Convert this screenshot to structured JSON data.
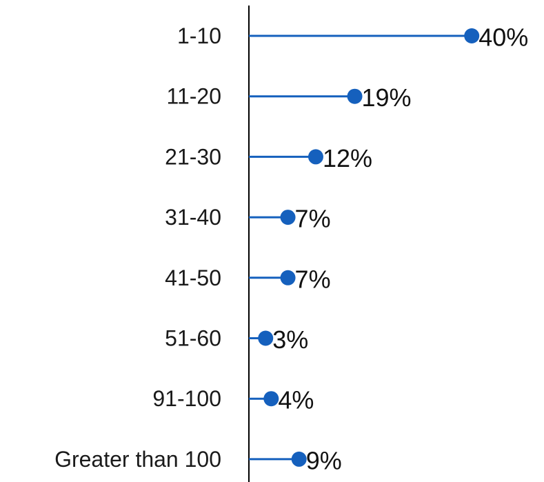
{
  "chart_data": {
    "type": "bar",
    "style": "lollipop-horizontal",
    "categories": [
      "1-10",
      "11-20",
      "21-30",
      "31-40",
      "41-50",
      "51-60",
      "91-100",
      "Greater than 100"
    ],
    "values": [
      40,
      19,
      12,
      7,
      7,
      3,
      4,
      9
    ],
    "value_labels": [
      "40%",
      "19%",
      "12%",
      "7%",
      "7%",
      "3%",
      "4%",
      "9%"
    ],
    "unit": "%",
    "xlim": [
      0,
      40
    ],
    "grid": false,
    "legend": "none",
    "colors": {
      "series": "#1560bd",
      "axis": "#000000"
    }
  }
}
